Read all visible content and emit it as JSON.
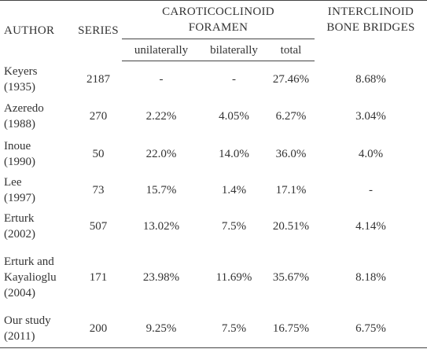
{
  "table": {
    "header": {
      "author": "AUTHOR",
      "series": "SERIES",
      "foramen": [
        "CAROTICOCLINOID",
        "FORAMEN"
      ],
      "bridges": [
        "INTERCLINOID",
        "BONE BRIDGES"
      ],
      "sub": [
        "unilaterally",
        "bilaterally",
        "total"
      ]
    },
    "rows": [
      [
        [
          "Keyers",
          "(1935)"
        ],
        "2187",
        "-",
        "-",
        "27.46%",
        "8.68%"
      ],
      [
        [
          "Azeredo",
          "(1988)"
        ],
        "270",
        "2.22%",
        "4.05%",
        "6.27%",
        "3.04%"
      ],
      [
        [
          "Inoue",
          "(1990)"
        ],
        "50",
        "22.0%",
        "14.0%",
        "36.0%",
        "4.0%"
      ],
      [
        [
          "Lee",
          "(1997)"
        ],
        "73",
        "15.7%",
        "1.4%",
        "17.1%",
        "-"
      ],
      [
        [
          "Erturk",
          "(2002)"
        ],
        "507",
        "13.02%",
        "7.5%",
        "20.51%",
        "4.14%"
      ],
      [
        [
          "Erturk and",
          "Kayalioglu",
          "(2004)"
        ],
        "171",
        "23.98%",
        "11.69%",
        "35.67%",
        "8.18%"
      ],
      [
        [
          "Our study",
          "(2011)"
        ],
        "200",
        "9.25%",
        "7.5%",
        "16.75%",
        "6.75%"
      ]
    ]
  }
}
